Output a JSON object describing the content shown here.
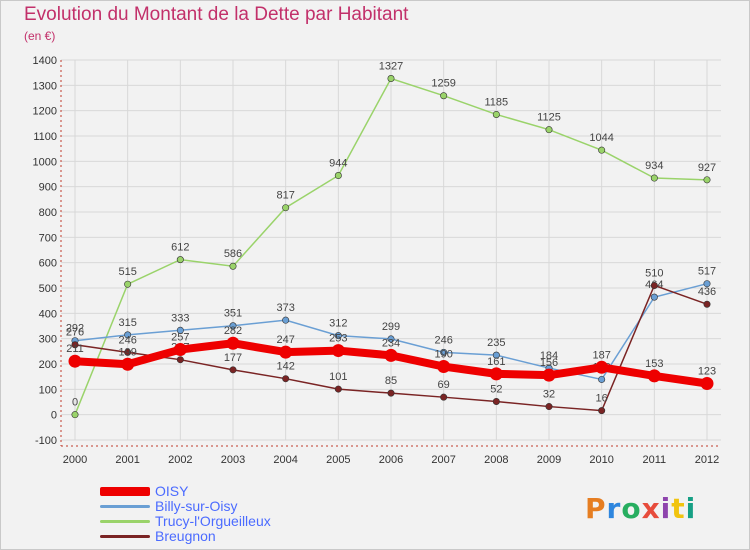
{
  "title": "Evolution du Montant de la Dette par Habitant",
  "subtitle": "(en €)",
  "logo": {
    "text": "Proxiti",
    "colors": [
      "#e67e22",
      "#2e86de",
      "#27ae60",
      "#e74c3c",
      "#8e44ad",
      "#f1c40f",
      "#16a085"
    ]
  },
  "chart_data": {
    "type": "line",
    "x": [
      "2000",
      "2001",
      "2002",
      "2003",
      "2004",
      "2005",
      "2006",
      "2007",
      "2008",
      "2009",
      "2010",
      "2011",
      "2012"
    ],
    "ylim": [
      -100,
      1400
    ],
    "yticks": [
      -100,
      0,
      100,
      200,
      300,
      400,
      500,
      600,
      700,
      800,
      900,
      1000,
      1100,
      1200,
      1300,
      1400
    ],
    "grid": true,
    "legend_position": "bottom-left",
    "series": [
      {
        "name": "OISY",
        "color": "#ee0000",
        "values": [
          211,
          199,
          257,
          282,
          247,
          253,
          234,
          190,
          161,
          156,
          187,
          153,
          123
        ],
        "labels": [
          "211",
          "199",
          "257",
          "282",
          "247",
          "253",
          "234",
          "190",
          "161",
          "156",
          "187",
          "153",
          "123"
        ]
      },
      {
        "name": "Billy-sur-Oisy",
        "color": "#6a9fd4",
        "values": [
          292,
          315,
          333,
          351,
          373,
          312,
          299,
          246,
          235,
          184,
          139,
          464,
          517
        ],
        "labels": [
          "292",
          "315",
          "333",
          "351",
          "373",
          "312",
          "299",
          "246",
          "235",
          "184",
          "139",
          "464",
          "517"
        ]
      },
      {
        "name": "Trucy-l'Orgueilleux",
        "color": "#9ad36a",
        "values": [
          0,
          515,
          612,
          586,
          817,
          944,
          1327,
          1259,
          1185,
          1125,
          1044,
          934,
          927
        ],
        "labels": [
          "0",
          "515",
          "612",
          "586",
          "817",
          "944",
          "1327",
          "1259",
          "1185",
          "1125",
          "1044",
          "934",
          "927"
        ]
      },
      {
        "name": "Breugnon",
        "color": "#7a2424",
        "values": [
          276,
          246,
          217,
          177,
          142,
          101,
          85,
          69,
          52,
          32,
          16,
          510,
          436
        ],
        "labels": [
          "276",
          "246",
          "217",
          "177",
          "142",
          "101",
          "85",
          "69",
          "52",
          "32",
          "16",
          "510",
          "436"
        ]
      }
    ]
  }
}
